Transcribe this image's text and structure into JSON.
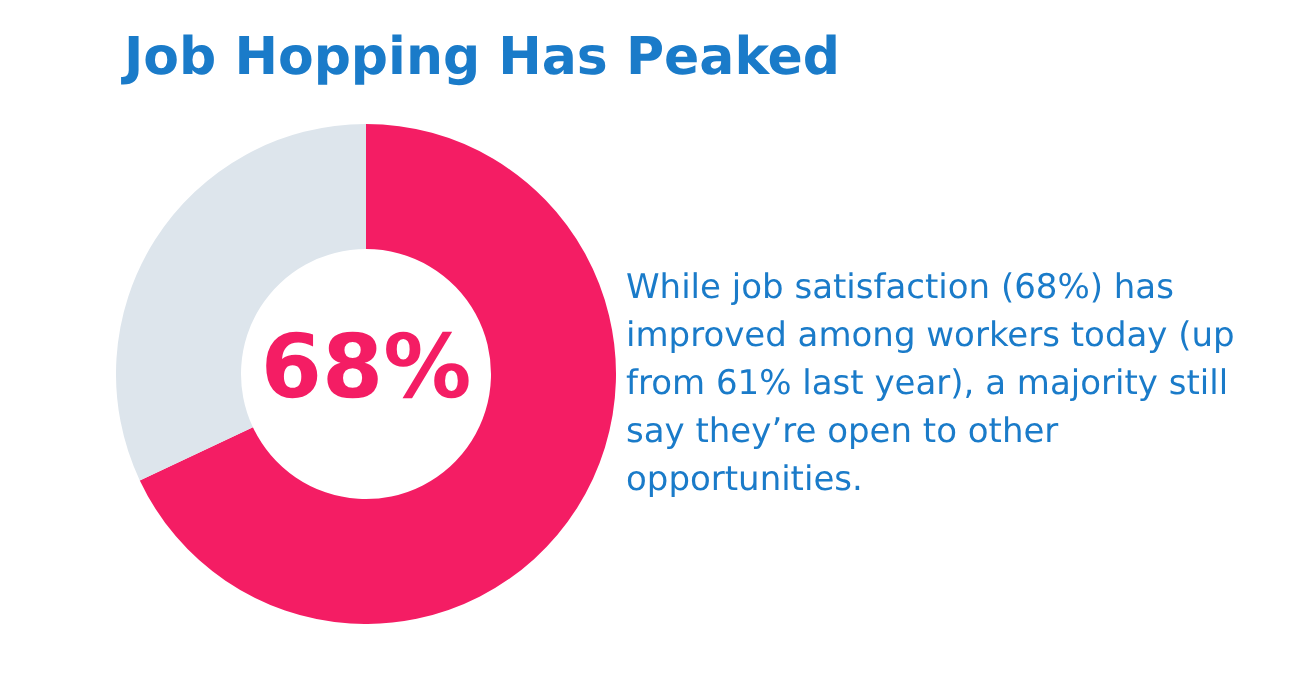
{
  "chart_data": {
    "type": "donut",
    "title": "Job Hopping Has Peaked",
    "categories": [
      null,
      null
    ],
    "values": [
      68,
      32
    ],
    "colors": [
      "#f41d64",
      "#dde5ec"
    ],
    "value_labels": [
      "68%",
      null
    ],
    "annotations": [
      "While job satisfaction (68%) has improved among workers today (up from 61% last year), a majority still say they’re open to other opportunities."
    ]
  }
}
